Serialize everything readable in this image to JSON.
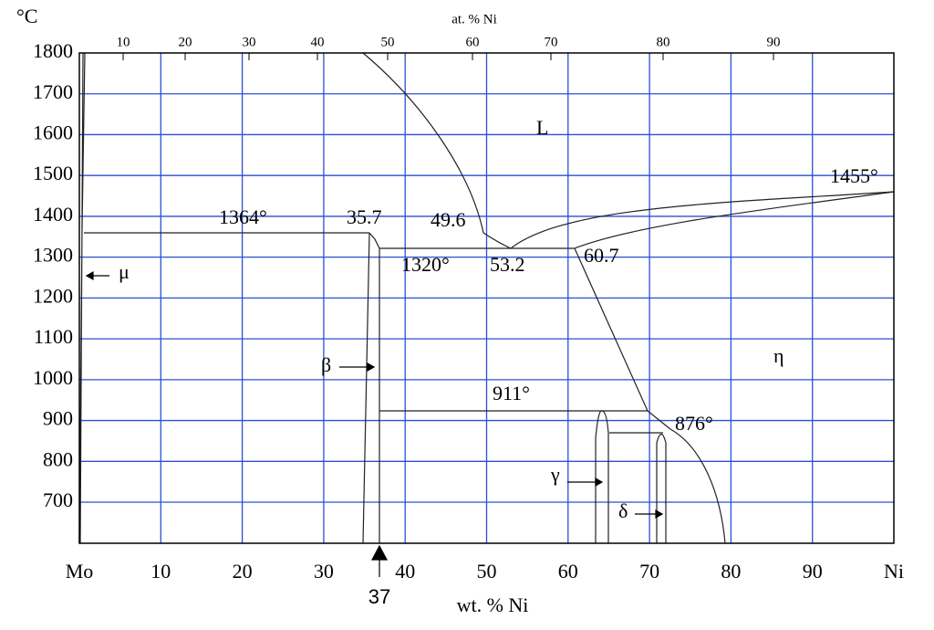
{
  "y_axis": {
    "unit": "°C",
    "labels": [
      "1800",
      "1700",
      "1600",
      "1500",
      "1400",
      "1300",
      "1200",
      "1100",
      "1000",
      "900",
      "800",
      "700"
    ]
  },
  "top_axis": {
    "title": "at. % Ni",
    "labels": [
      "10",
      "20",
      "30",
      "40",
      "50",
      "60",
      "70",
      "80",
      "90"
    ]
  },
  "bottom_axis": {
    "title": "wt. % Ni",
    "labels": [
      "Mo",
      "10",
      "20",
      "30",
      "40",
      "50",
      "60",
      "70",
      "80",
      "90",
      "Ni"
    ]
  },
  "marker": {
    "label": "37"
  },
  "annotations": [
    "1364°",
    "35.7",
    "49.6",
    "1320°",
    "53.2",
    "60.7",
    "L",
    "1455°",
    "μ",
    "β",
    "η",
    "911°",
    "876°",
    "γ",
    "δ"
  ]
}
